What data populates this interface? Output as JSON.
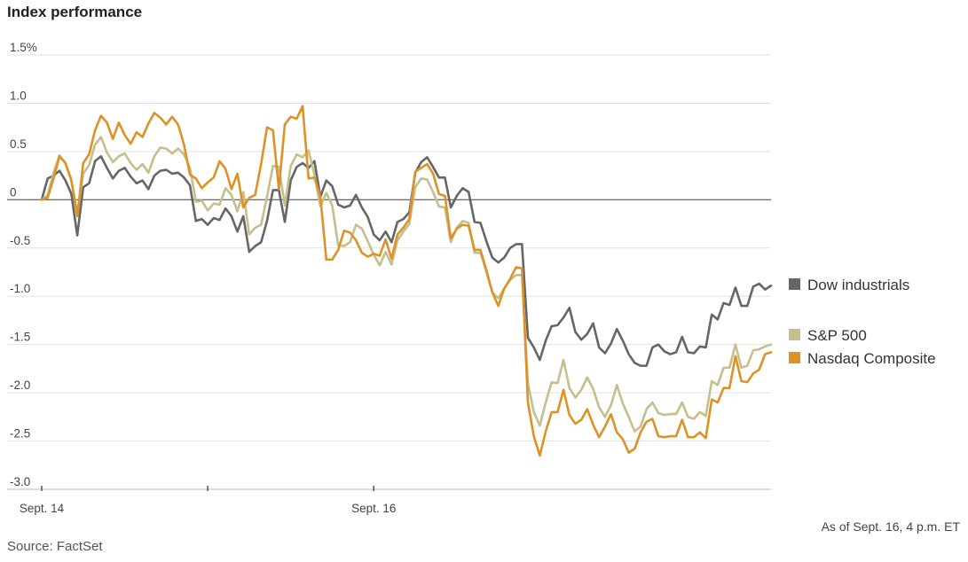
{
  "chart_data": {
    "type": "line",
    "title": "Index performance",
    "xlabel": "",
    "ylabel": "",
    "ylim": [
      -3.0,
      1.5
    ],
    "y_ticks": [
      1.5,
      1.0,
      0.5,
      0,
      -0.5,
      -1.0,
      -1.5,
      -2.0,
      -2.5,
      -3.0
    ],
    "y_tick_labels": [
      "1.5%",
      "1.0",
      "0.5",
      "0",
      "-0.5",
      "-1.0",
      "-1.5",
      "-2.0",
      "-2.5",
      "-3.0"
    ],
    "x_tick_labels": [
      "Sept. 14",
      "",
      "Sept. 16"
    ],
    "x_tick_points": [
      0,
      28,
      56
    ],
    "grid": true,
    "legend_position": "right",
    "series": [
      {
        "name": "Dow industrials",
        "color": "#666666",
        "values": [
          0,
          0.22,
          0.25,
          0.3,
          0.2,
          0.06,
          -0.37,
          0.13,
          0.17,
          0.4,
          0.45,
          0.33,
          0.22,
          0.3,
          0.33,
          0.24,
          0.17,
          0.2,
          0.11,
          0.25,
          0.3,
          0.31,
          0.27,
          0.28,
          0.23,
          0.15,
          -0.22,
          -0.2,
          -0.26,
          -0.19,
          -0.21,
          -0.09,
          -0.17,
          -0.33,
          -0.17,
          -0.54,
          -0.48,
          -0.44,
          -0.22,
          0.1,
          0.1,
          -0.23,
          0.2,
          0.34,
          0.38,
          0.33,
          0.4,
          0.03,
          0.2,
          0.14,
          -0.05,
          -0.08,
          -0.06,
          0.05,
          -0.08,
          -0.18,
          -0.36,
          -0.42,
          -0.33,
          -0.44,
          -0.23,
          -0.2,
          -0.13,
          0.28,
          0.39,
          0.44,
          0.34,
          0.23,
          0.23,
          -0.08,
          0.04,
          0.12,
          0.08,
          -0.23,
          -0.24,
          -0.43,
          -0.6,
          -0.65,
          -0.6,
          -0.5,
          -0.46,
          -0.46,
          -1.43,
          -1.53,
          -1.66,
          -1.46,
          -1.31,
          -1.3,
          -1.22,
          -1.12,
          -1.37,
          -1.45,
          -1.39,
          -1.28,
          -1.53,
          -1.59,
          -1.49,
          -1.34,
          -1.46,
          -1.6,
          -1.69,
          -1.72,
          -1.72,
          -1.53,
          -1.5,
          -1.57,
          -1.6,
          -1.58,
          -1.42,
          -1.58,
          -1.59,
          -1.52,
          -1.53,
          -1.19,
          -1.24,
          -1.07,
          -1.09,
          -0.91,
          -1.1,
          -1.1,
          -0.9,
          -0.87,
          -0.93,
          -0.89
        ]
      },
      {
        "name": "S&P 500",
        "color": "#c4bf8c",
        "values": [
          0,
          0.05,
          0.28,
          0.46,
          0.38,
          0.21,
          -0.15,
          0.27,
          0.36,
          0.57,
          0.65,
          0.49,
          0.39,
          0.45,
          0.48,
          0.38,
          0.31,
          0.37,
          0.28,
          0.45,
          0.54,
          0.53,
          0.48,
          0.53,
          0.47,
          0.33,
          -0.02,
          -0.01,
          -0.11,
          -0.04,
          -0.05,
          0.12,
          0.05,
          -0.12,
          0.08,
          -0.36,
          -0.29,
          -0.26,
          0.03,
          0.35,
          0.34,
          -0.06,
          0.35,
          0.47,
          0.44,
          0.51,
          0.26,
          -0.07,
          0.07,
          -0.06,
          -0.47,
          -0.48,
          -0.44,
          -0.26,
          -0.3,
          -0.43,
          -0.57,
          -0.68,
          -0.54,
          -0.67,
          -0.42,
          -0.33,
          -0.25,
          0.13,
          0.22,
          0.21,
          0.08,
          -0.07,
          -0.08,
          -0.44,
          -0.29,
          -0.22,
          -0.24,
          -0.55,
          -0.55,
          -0.75,
          -0.96,
          -1.02,
          -0.92,
          -0.83,
          -0.78,
          -0.78,
          -1.9,
          -2.2,
          -2.34,
          -2.1,
          -1.89,
          -1.9,
          -1.66,
          -1.95,
          -2.05,
          -1.97,
          -1.84,
          -1.96,
          -2.15,
          -2.25,
          -2.13,
          -1.92,
          -2.11,
          -2.25,
          -2.4,
          -2.35,
          -2.17,
          -2.1,
          -2.21,
          -2.23,
          -2.22,
          -2.22,
          -2.1,
          -2.25,
          -2.27,
          -2.2,
          -2.24,
          -1.88,
          -1.92,
          -1.74,
          -1.74,
          -1.5,
          -1.74,
          -1.72,
          -1.56,
          -1.55,
          -1.52,
          -1.5
        ]
      },
      {
        "name": "Nasdaq Composite",
        "color": "#dd9227",
        "values": [
          0,
          0.02,
          0.22,
          0.45,
          0.38,
          0.2,
          -0.17,
          0.38,
          0.47,
          0.72,
          0.87,
          0.8,
          0.63,
          0.8,
          0.67,
          0.58,
          0.7,
          0.65,
          0.79,
          0.9,
          0.85,
          0.78,
          0.86,
          0.78,
          0.57,
          0.26,
          0.22,
          0.12,
          0.18,
          0.23,
          0.4,
          0.32,
          0.11,
          0.27,
          -0.08,
          0.02,
          0.05,
          0.37,
          0.75,
          0.72,
          0.11,
          0.78,
          0.86,
          0.84,
          0.97,
          0.22,
          0.23,
          0.03,
          -0.62,
          -0.62,
          -0.52,
          -0.32,
          -0.34,
          -0.42,
          -0.55,
          -0.59,
          -0.56,
          -0.58,
          -0.41,
          -0.61,
          -0.36,
          -0.29,
          -0.2,
          0.29,
          0.33,
          0.37,
          0.27,
          0.06,
          0.04,
          -0.4,
          -0.3,
          -0.26,
          -0.27,
          -0.52,
          -0.52,
          -0.73,
          -0.96,
          -1.1,
          -0.92,
          -0.82,
          -0.7,
          -0.71,
          -2.1,
          -2.45,
          -2.65,
          -2.4,
          -2.2,
          -2.2,
          -1.97,
          -2.23,
          -2.32,
          -2.28,
          -2.17,
          -2.33,
          -2.46,
          -2.35,
          -2.22,
          -2.41,
          -2.48,
          -2.62,
          -2.58,
          -2.41,
          -2.3,
          -2.27,
          -2.45,
          -2.46,
          -2.45,
          -2.45,
          -2.28,
          -2.46,
          -2.46,
          -2.41,
          -2.47,
          -2.07,
          -2.1,
          -1.95,
          -1.95,
          -1.62,
          -1.88,
          -1.89,
          -1.8,
          -1.76,
          -1.6,
          -1.58
        ]
      }
    ]
  },
  "chart_meta": {
    "source": "Source: FactSet",
    "as_of": "As of Sept. 16, 4 p.m. ET"
  }
}
